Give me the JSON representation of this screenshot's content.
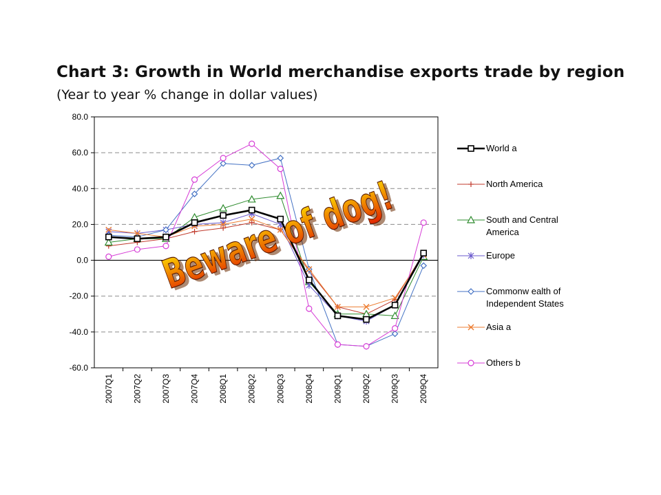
{
  "header": {
    "title": "Chart 3: Growth in World merchandise exports trade by region",
    "subtitle": "(Year to year % change in dollar values)"
  },
  "overlay": {
    "text": "Beware of dog!",
    "colors": {
      "top": "#ffea00",
      "bottom": "#e02000",
      "outline": "#5a1a00"
    }
  },
  "chart_data": {
    "type": "line",
    "x": [
      "2007Q1",
      "2007Q2",
      "2007Q3",
      "2007Q4",
      "2008Q1",
      "2008Q2",
      "2008Q3",
      "2008Q4",
      "2009Q1",
      "2009Q2",
      "2009Q3",
      "2009Q4"
    ],
    "ylim": [
      -60,
      80
    ],
    "yticks": [
      "80.0",
      "60.0",
      "40.0",
      "20.0",
      "0.0",
      "-20.0",
      "-40.0",
      "-60.0"
    ],
    "grid": "horizontal dashed",
    "legend_position": "right",
    "series": [
      {
        "name": "World  a",
        "color": "#000000",
        "marker": "square",
        "width": 2.6,
        "values": [
          13,
          12,
          13,
          21,
          25,
          28,
          23,
          -11,
          -31,
          -33,
          -25,
          4
        ]
      },
      {
        "name": "North America",
        "color": "#c0392b",
        "marker": "plus",
        "width": 1,
        "values": [
          8,
          10,
          12,
          16,
          18,
          21,
          17,
          -6,
          -26,
          -30,
          -22,
          4
        ]
      },
      {
        "name": "South and Central America",
        "color": "#2e8b2e",
        "marker": "triangle",
        "width": 1,
        "values": [
          10,
          12,
          12,
          24,
          29,
          34,
          36,
          -12,
          -30,
          -30,
          -31,
          2
        ]
      },
      {
        "name": "Europe",
        "color": "#6a5acd",
        "marker": "star",
        "width": 1,
        "values": [
          16,
          15,
          17,
          20,
          21,
          26,
          20,
          -14,
          -31,
          -34,
          -25,
          3
        ]
      },
      {
        "name": "Commonw ealth of Independent States",
        "color": "#4472c4",
        "marker": "diamond",
        "width": 1,
        "values": [
          14,
          13,
          17,
          37,
          54,
          53,
          57,
          -5,
          -47,
          -48,
          -41,
          -3
        ]
      },
      {
        "name": "Asia  a",
        "color": "#ed7d31",
        "marker": "x",
        "width": 1,
        "values": [
          17,
          15,
          13,
          19,
          20,
          23,
          17,
          -5,
          -26,
          -26,
          -21,
          3
        ]
      },
      {
        "name": "Others  b",
        "color": "#d63cd6",
        "marker": "circle",
        "width": 1,
        "values": [
          2,
          6,
          8,
          45,
          57,
          65,
          51,
          -27,
          -47,
          -48,
          -38,
          21
        ]
      }
    ]
  }
}
